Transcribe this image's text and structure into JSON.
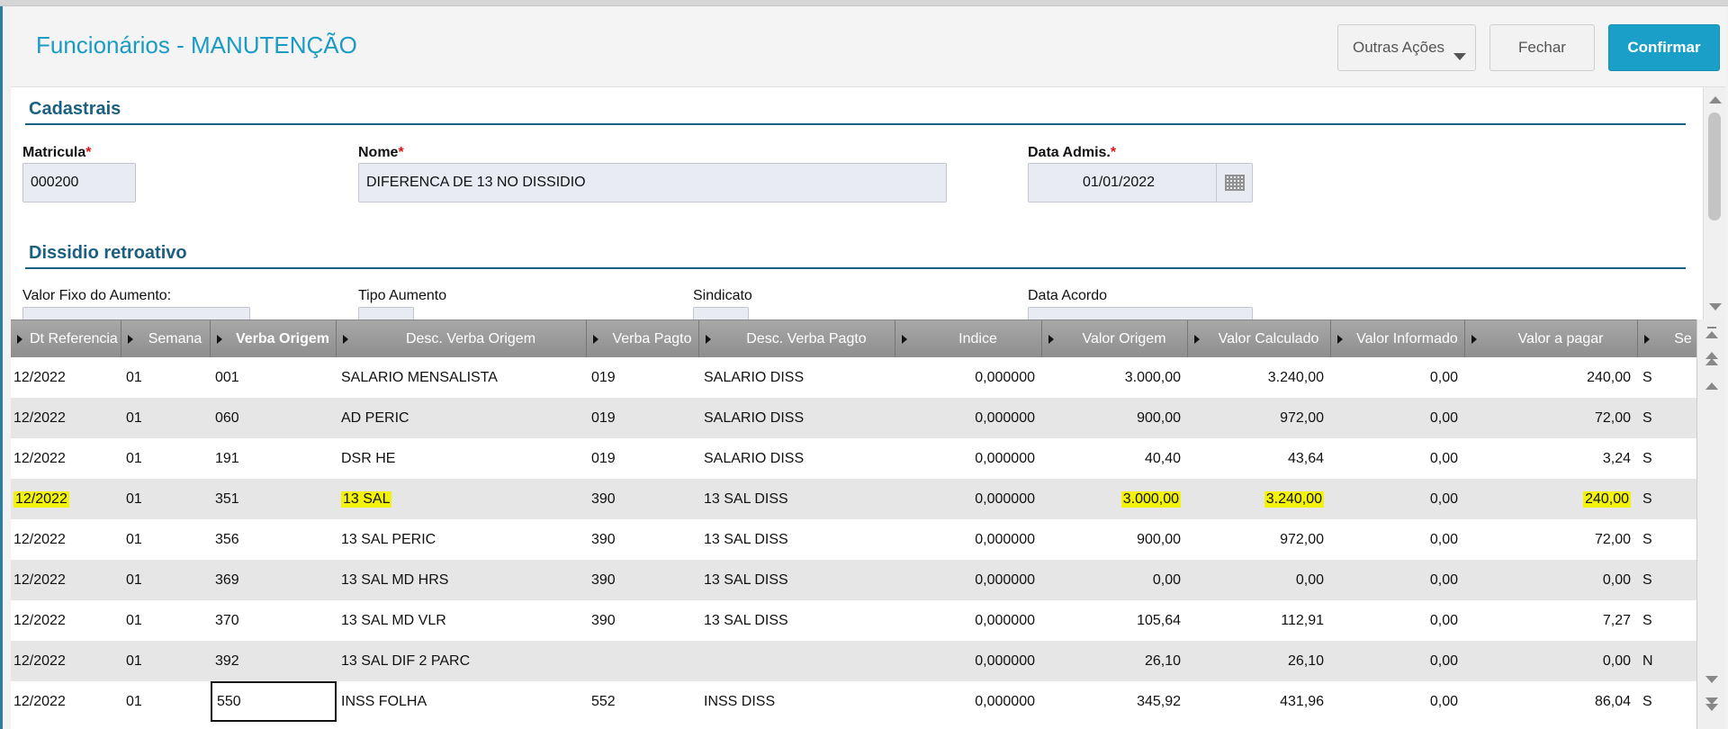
{
  "header": {
    "title": "Funcionários - MANUTENÇÃO",
    "buttons": {
      "outras": "Outras Ações",
      "fechar": "Fechar",
      "confirmar": "Confirmar"
    }
  },
  "cadastrais": {
    "title": "Cadastrais",
    "matricula_label": "Matricula",
    "matricula_value": "000200",
    "nome_label": "Nome",
    "nome_value": "DIFERENCA DE 13 NO DISSIDIO",
    "data_adm_label": "Data Admis.",
    "data_adm_value": "01/01/2022",
    "required_mark": "*"
  },
  "dissidio": {
    "title": "Dissidio retroativo",
    "valor_fixo_label": "Valor Fixo do Aumento:",
    "tipo_aumento_label": "Tipo Aumento",
    "sindicato_label": "Sindicato",
    "data_acordo_label": "Data Acordo"
  },
  "grid": {
    "columns": [
      "Dt Referencia",
      "Semana",
      "Verba Origem",
      "Desc. Verba Origem",
      "Verba Pagto",
      "Desc. Verba Pagto",
      "Indice",
      "Valor Origem",
      "Valor Calculado",
      "Valor Informado",
      "Valor a pagar",
      "Se"
    ],
    "rows": [
      [
        "12/2022",
        "01",
        "001",
        "SALARIO MENSALISTA",
        "019",
        "SALARIO DISS",
        "0,000000",
        "3.000,00",
        "3.240,00",
        "0,00",
        "240,00",
        "S"
      ],
      [
        "12/2022",
        "01",
        "060",
        "AD PERIC",
        "019",
        "SALARIO DISS",
        "0,000000",
        "900,00",
        "972,00",
        "0,00",
        "72,00",
        "S"
      ],
      [
        "12/2022",
        "01",
        "191",
        "DSR HE",
        "019",
        "SALARIO DISS",
        "0,000000",
        "40,40",
        "43,64",
        "0,00",
        "3,24",
        "S"
      ],
      [
        "12/2022",
        "01",
        "351",
        "13 SAL",
        "390",
        "13 SAL DISS",
        "0,000000",
        "3.000,00",
        "3.240,00",
        "0,00",
        "240,00",
        "S"
      ],
      [
        "12/2022",
        "01",
        "356",
        "13 SAL PERIC",
        "390",
        "13 SAL DISS",
        "0,000000",
        "900,00",
        "972,00",
        "0,00",
        "72,00",
        "S"
      ],
      [
        "12/2022",
        "01",
        "369",
        "13 SAL MD HRS",
        "390",
        "13 SAL DISS",
        "0,000000",
        "0,00",
        "0,00",
        "0,00",
        "0,00",
        "S"
      ],
      [
        "12/2022",
        "01",
        "370",
        "13 SAL MD VLR",
        "390",
        "13 SAL DISS",
        "0,000000",
        "105,64",
        "112,91",
        "0,00",
        "7,27",
        "S"
      ],
      [
        "12/2022",
        "01",
        "392",
        "13 SAL DIF 2 PARC",
        "",
        "",
        "0,000000",
        "26,10",
        "26,10",
        "0,00",
        "0,00",
        "N"
      ],
      [
        "12/2022",
        "01",
        "550",
        "INSS FOLHA",
        "552",
        "INSS DISS",
        "0,000000",
        "345,92",
        "431,96",
        "0,00",
        "86,04",
        "S"
      ]
    ],
    "highlight_color": "#f2f20a",
    "highlights": {
      "row": 3,
      "cols": [
        0,
        3,
        7,
        8,
        10
      ]
    },
    "selected_cell": {
      "row": 8,
      "col": 2
    }
  }
}
